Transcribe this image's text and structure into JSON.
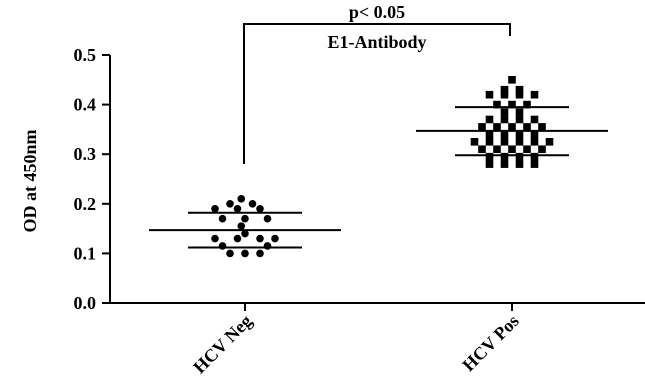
{
  "chart_data": {
    "type": "scatter",
    "ylabel": "OD at 450nm",
    "ylim": [
      0,
      0.5
    ],
    "y_ticks": [
      "0.0",
      "0.1",
      "0.2",
      "0.3",
      "0.4",
      "0.5"
    ],
    "y_tick_values": [
      0,
      0.1,
      0.2,
      0.3,
      0.4,
      0.5
    ],
    "categories": [
      "HCV Neg",
      "HCV Pos"
    ],
    "annotation": {
      "pvalue": "p< 0.05",
      "label": "E1-Antibody"
    },
    "series": [
      {
        "category": "HCV Neg",
        "marker": "circle",
        "mean": 0.147,
        "sd_upper": 0.182,
        "sd_lower": 0.112,
        "points": [
          {
            "offset": -0.5,
            "value": 0.21
          },
          {
            "offset": -2.0,
            "value": 0.2
          },
          {
            "offset": 1.0,
            "value": 0.2
          },
          {
            "offset": -4.0,
            "value": 0.19
          },
          {
            "offset": -1.0,
            "value": 0.19
          },
          {
            "offset": 2.0,
            "value": 0.19
          },
          {
            "offset": -3.0,
            "value": 0.17
          },
          {
            "offset": 0.0,
            "value": 0.17
          },
          {
            "offset": 3.0,
            "value": 0.17
          },
          {
            "offset": -0.5,
            "value": 0.155
          },
          {
            "offset": 0.0,
            "value": 0.14
          },
          {
            "offset": -4.0,
            "value": 0.13
          },
          {
            "offset": -1.0,
            "value": 0.13
          },
          {
            "offset": 2.0,
            "value": 0.13
          },
          {
            "offset": 4.0,
            "value": 0.13
          },
          {
            "offset": -3.0,
            "value": 0.115
          },
          {
            "offset": 3.0,
            "value": 0.115
          },
          {
            "offset": -2.0,
            "value": 0.1
          },
          {
            "offset": 0.0,
            "value": 0.1
          },
          {
            "offset": 2.0,
            "value": 0.1
          }
        ]
      },
      {
        "category": "HCV Pos",
        "marker": "square",
        "mean": 0.347,
        "sd_upper": 0.395,
        "sd_lower": 0.298,
        "points": [
          {
            "offset": 0.0,
            "value": 0.45
          },
          {
            "offset": -1.0,
            "value": 0.43
          },
          {
            "offset": 1.0,
            "value": 0.43
          },
          {
            "offset": -3.0,
            "value": 0.42
          },
          {
            "offset": -1.0,
            "value": 0.42
          },
          {
            "offset": 1.0,
            "value": 0.42
          },
          {
            "offset": 3.0,
            "value": 0.42
          },
          {
            "offset": -2.0,
            "value": 0.4
          },
          {
            "offset": 0.0,
            "value": 0.4
          },
          {
            "offset": 2.0,
            "value": 0.4
          },
          {
            "offset": -1.0,
            "value": 0.385
          },
          {
            "offset": 1.0,
            "value": 0.385
          },
          {
            "offset": -3.0,
            "value": 0.37
          },
          {
            "offset": -1.0,
            "value": 0.37
          },
          {
            "offset": 1.0,
            "value": 0.37
          },
          {
            "offset": 3.0,
            "value": 0.37
          },
          {
            "offset": -4.0,
            "value": 0.355
          },
          {
            "offset": -2.0,
            "value": 0.355
          },
          {
            "offset": 0.0,
            "value": 0.355
          },
          {
            "offset": 2.0,
            "value": 0.355
          },
          {
            "offset": 4.0,
            "value": 0.355
          },
          {
            "offset": -3.0,
            "value": 0.34
          },
          {
            "offset": -1.0,
            "value": 0.34
          },
          {
            "offset": 1.0,
            "value": 0.34
          },
          {
            "offset": 3.0,
            "value": 0.34
          },
          {
            "offset": -5.0,
            "value": 0.325
          },
          {
            "offset": -3.0,
            "value": 0.325
          },
          {
            "offset": -1.0,
            "value": 0.325
          },
          {
            "offset": 1.0,
            "value": 0.325
          },
          {
            "offset": 3.0,
            "value": 0.325
          },
          {
            "offset": 5.0,
            "value": 0.325
          },
          {
            "offset": -4.0,
            "value": 0.31
          },
          {
            "offset": -2.0,
            "value": 0.31
          },
          {
            "offset": 0.0,
            "value": 0.31
          },
          {
            "offset": 2.0,
            "value": 0.31
          },
          {
            "offset": 4.0,
            "value": 0.31
          },
          {
            "offset": -3.0,
            "value": 0.295
          },
          {
            "offset": -1.0,
            "value": 0.295
          },
          {
            "offset": 1.0,
            "value": 0.295
          },
          {
            "offset": 3.0,
            "value": 0.295
          },
          {
            "offset": -3.0,
            "value": 0.28
          },
          {
            "offset": -1.0,
            "value": 0.28
          },
          {
            "offset": 1.0,
            "value": 0.28
          },
          {
            "offset": 3.0,
            "value": 0.28
          }
        ]
      }
    ]
  }
}
